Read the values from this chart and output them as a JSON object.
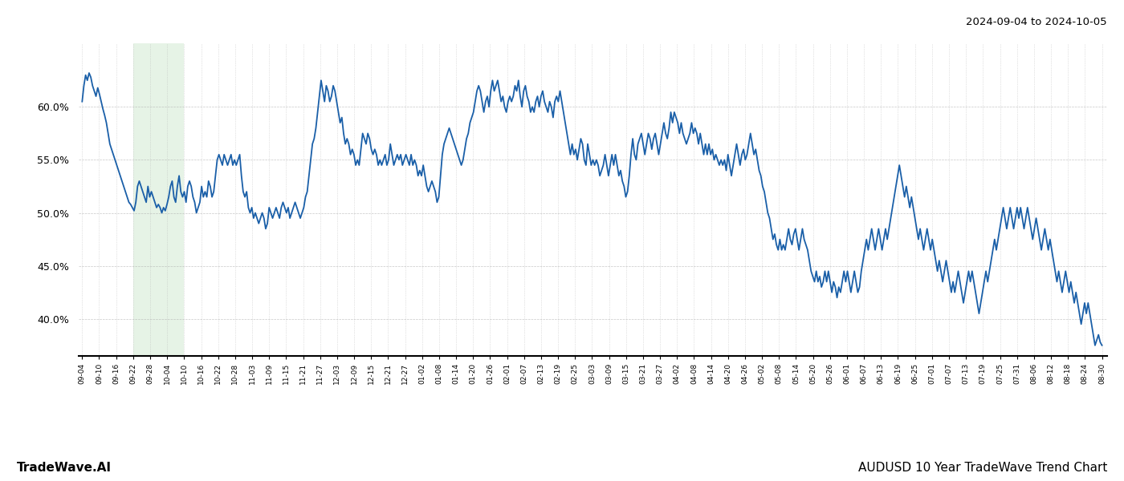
{
  "title_right": "2024-09-04 to 2024-10-05",
  "footer_left": "TradeWave.AI",
  "footer_right": "AUDUSD 10 Year TradeWave Trend Chart",
  "ylim": [
    36.5,
    66.0
  ],
  "yticks": [
    40.0,
    45.0,
    50.0,
    55.0,
    60.0
  ],
  "line_color": "#1a5fa8",
  "line_width": 1.3,
  "shade_color": "#c8e6c9",
  "shade_alpha": 0.45,
  "background_color": "#ffffff",
  "grid_color": "#b0b0b0",
  "grid_style": ":",
  "x_labels": [
    "09-04",
    "09-10",
    "09-16",
    "09-22",
    "09-28",
    "10-04",
    "10-10",
    "10-16",
    "10-22",
    "10-28",
    "11-03",
    "11-09",
    "11-15",
    "11-21",
    "11-27",
    "12-03",
    "12-09",
    "12-15",
    "12-21",
    "12-27",
    "01-02",
    "01-08",
    "01-14",
    "01-20",
    "01-26",
    "02-01",
    "02-07",
    "02-13",
    "02-19",
    "02-25",
    "03-03",
    "03-09",
    "03-15",
    "03-21",
    "03-27",
    "04-02",
    "04-08",
    "04-14",
    "04-20",
    "04-26",
    "05-02",
    "05-08",
    "05-14",
    "05-20",
    "05-26",
    "06-01",
    "06-07",
    "06-13",
    "06-19",
    "06-25",
    "07-01",
    "07-07",
    "07-13",
    "07-19",
    "07-25",
    "07-31",
    "08-06",
    "08-12",
    "08-18",
    "08-24",
    "08-30"
  ],
  "shade_label_start": "09-22",
  "shade_label_end": "10-10",
  "values": [
    60.5,
    62.0,
    63.0,
    62.5,
    63.2,
    62.8,
    62.0,
    61.5,
    61.0,
    61.8,
    61.2,
    60.5,
    59.8,
    59.2,
    58.5,
    57.5,
    56.5,
    56.0,
    55.5,
    55.0,
    54.5,
    54.0,
    53.5,
    53.0,
    52.5,
    52.0,
    51.5,
    51.0,
    50.8,
    50.5,
    50.2,
    51.0,
    52.5,
    53.0,
    52.5,
    52.0,
    51.5,
    51.0,
    52.5,
    51.5,
    52.0,
    51.5,
    51.0,
    50.5,
    50.8,
    50.5,
    50.0,
    50.5,
    50.2,
    50.8,
    51.5,
    52.5,
    53.0,
    51.5,
    51.0,
    52.5,
    53.5,
    52.0,
    51.5,
    52.0,
    51.0,
    52.5,
    53.0,
    52.5,
    51.5,
    51.0,
    50.0,
    50.5,
    51.0,
    52.5,
    51.5,
    52.0,
    51.5,
    53.0,
    52.5,
    51.5,
    52.0,
    53.5,
    55.0,
    55.5,
    55.0,
    54.5,
    55.5,
    55.0,
    54.5,
    55.0,
    55.5,
    54.5,
    55.0,
    54.5,
    55.0,
    55.5,
    53.5,
    52.0,
    51.5,
    52.0,
    50.5,
    50.0,
    50.5,
    49.5,
    50.0,
    49.5,
    49.0,
    49.5,
    50.0,
    49.5,
    48.5,
    49.0,
    50.5,
    50.0,
    49.5,
    50.0,
    50.5,
    50.0,
    49.5,
    50.5,
    51.0,
    50.5,
    50.0,
    50.5,
    49.5,
    50.0,
    50.5,
    51.0,
    50.5,
    50.0,
    49.5,
    50.0,
    50.5,
    51.5,
    52.0,
    53.5,
    55.0,
    56.5,
    57.0,
    58.0,
    59.5,
    61.0,
    62.5,
    61.5,
    60.5,
    62.0,
    61.5,
    60.5,
    61.0,
    62.0,
    61.5,
    60.5,
    59.5,
    58.5,
    59.0,
    57.5,
    56.5,
    57.0,
    56.5,
    55.5,
    56.0,
    55.5,
    54.5,
    55.0,
    54.5,
    56.0,
    57.5,
    57.0,
    56.5,
    57.5,
    57.0,
    56.0,
    55.5,
    56.0,
    55.5,
    54.5,
    55.0,
    54.5,
    55.0,
    55.5,
    54.5,
    55.0,
    56.5,
    55.5,
    54.5,
    55.0,
    55.5,
    55.0,
    55.5,
    54.5,
    55.0,
    55.5,
    55.0,
    54.5,
    55.5,
    54.5,
    55.0,
    54.5,
    53.5,
    54.0,
    53.5,
    54.5,
    53.5,
    52.5,
    52.0,
    52.5,
    53.0,
    52.5,
    52.0,
    51.0,
    51.5,
    53.5,
    55.5,
    56.5,
    57.0,
    57.5,
    58.0,
    57.5,
    57.0,
    56.5,
    56.0,
    55.5,
    55.0,
    54.5,
    55.0,
    56.0,
    57.0,
    57.5,
    58.5,
    59.0,
    59.5,
    60.5,
    61.5,
    62.0,
    61.5,
    60.5,
    59.5,
    60.5,
    61.0,
    60.0,
    61.5,
    62.5,
    61.5,
    62.0,
    62.5,
    61.5,
    60.5,
    61.0,
    60.0,
    59.5,
    60.5,
    61.0,
    60.5,
    61.0,
    62.0,
    61.5,
    62.5,
    61.0,
    60.0,
    61.5,
    62.0,
    61.0,
    60.5,
    59.5,
    60.0,
    59.5,
    60.5,
    61.0,
    60.0,
    61.0,
    61.5,
    60.5,
    60.0,
    59.5,
    60.5,
    60.0,
    59.0,
    60.5,
    61.0,
    60.5,
    61.5,
    60.5,
    59.5,
    58.5,
    57.5,
    56.5,
    55.5,
    56.5,
    55.5,
    56.0,
    55.0,
    56.0,
    57.0,
    56.5,
    55.0,
    54.5,
    56.5,
    55.5,
    54.5,
    55.0,
    54.5,
    55.0,
    54.5,
    53.5,
    54.0,
    54.5,
    55.5,
    54.5,
    53.5,
    54.5,
    55.5,
    54.5,
    55.5,
    54.5,
    53.5,
    54.0,
    53.0,
    52.5,
    51.5,
    52.0,
    53.5,
    55.5,
    57.0,
    55.5,
    55.0,
    56.5,
    57.0,
    57.5,
    56.5,
    55.5,
    56.5,
    57.5,
    57.0,
    56.0,
    57.0,
    57.5,
    56.5,
    55.5,
    56.5,
    57.5,
    58.5,
    57.5,
    57.0,
    58.0,
    59.5,
    58.5,
    59.5,
    59.0,
    58.5,
    57.5,
    58.5,
    57.5,
    57.0,
    56.5,
    57.0,
    57.5,
    58.5,
    57.5,
    58.0,
    57.5,
    56.5,
    57.5,
    56.5,
    55.5,
    56.5,
    55.5,
    56.5,
    55.5,
    56.0,
    55.0,
    55.5,
    55.0,
    54.5,
    55.0,
    54.5,
    55.0,
    54.0,
    55.5,
    54.5,
    53.5,
    54.5,
    55.5,
    56.5,
    55.5,
    54.5,
    55.5,
    56.0,
    55.0,
    55.5,
    56.5,
    57.5,
    56.5,
    55.5,
    56.0,
    55.0,
    54.0,
    53.5,
    52.5,
    52.0,
    51.0,
    50.0,
    49.5,
    48.5,
    47.5,
    48.0,
    47.0,
    46.5,
    47.5,
    46.5,
    47.0,
    46.5,
    47.5,
    48.5,
    47.5,
    47.0,
    48.0,
    48.5,
    47.5,
    46.5,
    47.5,
    48.5,
    47.5,
    47.0,
    46.5,
    45.5,
    44.5,
    44.0,
    43.5,
    44.5,
    43.5,
    44.0,
    43.0,
    43.5,
    44.5,
    43.5,
    44.5,
    43.5,
    42.5,
    43.5,
    43.0,
    42.0,
    43.0,
    42.5,
    43.5,
    44.5,
    43.5,
    44.5,
    43.5,
    42.5,
    43.5,
    44.5,
    43.5,
    42.5,
    43.0,
    44.5,
    45.5,
    46.5,
    47.5,
    46.5,
    47.5,
    48.5,
    47.5,
    46.5,
    47.5,
    48.5,
    47.5,
    46.5,
    47.5,
    48.5,
    47.5,
    48.5,
    49.5,
    50.5,
    51.5,
    52.5,
    53.5,
    54.5,
    53.5,
    52.5,
    51.5,
    52.5,
    51.5,
    50.5,
    51.5,
    50.5,
    49.5,
    48.5,
    47.5,
    48.5,
    47.5,
    46.5,
    47.5,
    48.5,
    47.5,
    46.5,
    47.5,
    46.5,
    45.5,
    44.5,
    45.5,
    44.5,
    43.5,
    44.5,
    45.5,
    44.5,
    43.5,
    42.5,
    43.5,
    42.5,
    43.5,
    44.5,
    43.5,
    42.5,
    41.5,
    42.5,
    43.5,
    44.5,
    43.5,
    44.5,
    43.5,
    42.5,
    41.5,
    40.5,
    41.5,
    42.5,
    43.5,
    44.5,
    43.5,
    44.5,
    45.5,
    46.5,
    47.5,
    46.5,
    47.5,
    48.5,
    49.5,
    50.5,
    49.5,
    48.5,
    49.5,
    50.5,
    49.5,
    48.5,
    49.5,
    50.5,
    49.5,
    50.5,
    49.5,
    48.5,
    49.5,
    50.5,
    49.5,
    48.5,
    47.5,
    48.5,
    49.5,
    48.5,
    47.5,
    46.5,
    47.5,
    48.5,
    47.5,
    46.5,
    47.5,
    46.5,
    45.5,
    44.5,
    43.5,
    44.5,
    43.5,
    42.5,
    43.5,
    44.5,
    43.5,
    42.5,
    43.5,
    42.5,
    41.5,
    42.5,
    41.5,
    40.5,
    39.5,
    40.5,
    41.5,
    40.5,
    41.5,
    40.5,
    39.5,
    38.5,
    37.5,
    38.0,
    38.5,
    37.8,
    37.5
  ]
}
